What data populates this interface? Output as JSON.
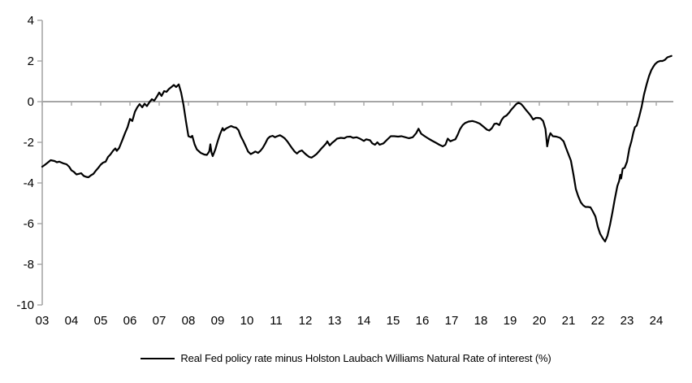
{
  "chart_data": {
    "type": "line",
    "title": "",
    "legend": "Real Fed policy rate minus Holston Laubach Williams Natural Rate of interest (%)",
    "legend_position": "bottom-center",
    "grid": "zero-line-only",
    "colors": {
      "line": "#000000",
      "axis": "#A6A6A6",
      "text": "#000000",
      "background": "#FFFFFF"
    },
    "y_axis": {
      "min": -10,
      "max": 4,
      "tick_step": 2,
      "ticks": [
        4,
        2,
        0,
        -2,
        -4,
        -6,
        -8,
        -10
      ],
      "tick_labels": [
        "4",
        "2",
        "0",
        "-2",
        "-4",
        "-6",
        "-8",
        "-10"
      ]
    },
    "x_axis": {
      "start_year": 2003,
      "end_x": 2024.55,
      "tick_labels": [
        "03",
        "04",
        "05",
        "06",
        "07",
        "08",
        "09",
        "10",
        "11",
        "12",
        "13",
        "14",
        "15",
        "16",
        "17",
        "18",
        "19",
        "20",
        "21",
        "22",
        "23",
        "24"
      ]
    },
    "series": [
      {
        "name": "Real Fed policy rate minus Holston Laubach Williams Natural Rate of interest (%)",
        "points": [
          [
            2003.0,
            -3.2
          ],
          [
            2003.08,
            -3.12
          ],
          [
            2003.17,
            -3.02
          ],
          [
            2003.29,
            -2.88
          ],
          [
            2003.42,
            -2.92
          ],
          [
            2003.5,
            -2.98
          ],
          [
            2003.58,
            -2.95
          ],
          [
            2003.71,
            -3.03
          ],
          [
            2003.83,
            -3.08
          ],
          [
            2003.92,
            -3.2
          ],
          [
            2004.0,
            -3.38
          ],
          [
            2004.08,
            -3.45
          ],
          [
            2004.17,
            -3.58
          ],
          [
            2004.25,
            -3.55
          ],
          [
            2004.33,
            -3.52
          ],
          [
            2004.42,
            -3.65
          ],
          [
            2004.5,
            -3.7
          ],
          [
            2004.58,
            -3.72
          ],
          [
            2004.67,
            -3.62
          ],
          [
            2004.75,
            -3.55
          ],
          [
            2004.83,
            -3.4
          ],
          [
            2004.92,
            -3.25
          ],
          [
            2005.0,
            -3.1
          ],
          [
            2005.08,
            -3.0
          ],
          [
            2005.17,
            -2.95
          ],
          [
            2005.25,
            -2.72
          ],
          [
            2005.33,
            -2.6
          ],
          [
            2005.42,
            -2.42
          ],
          [
            2005.5,
            -2.3
          ],
          [
            2005.55,
            -2.42
          ],
          [
            2005.63,
            -2.28
          ],
          [
            2005.75,
            -1.85
          ],
          [
            2005.83,
            -1.55
          ],
          [
            2005.92,
            -1.25
          ],
          [
            2006.0,
            -0.85
          ],
          [
            2006.08,
            -0.95
          ],
          [
            2006.17,
            -0.5
          ],
          [
            2006.25,
            -0.28
          ],
          [
            2006.33,
            -0.12
          ],
          [
            2006.42,
            -0.28
          ],
          [
            2006.5,
            -0.1
          ],
          [
            2006.58,
            -0.22
          ],
          [
            2006.67,
            -0.02
          ],
          [
            2006.75,
            0.12
          ],
          [
            2006.83,
            0.05
          ],
          [
            2006.92,
            0.25
          ],
          [
            2007.0,
            0.45
          ],
          [
            2007.08,
            0.28
          ],
          [
            2007.17,
            0.52
          ],
          [
            2007.25,
            0.48
          ],
          [
            2007.33,
            0.62
          ],
          [
            2007.42,
            0.72
          ],
          [
            2007.5,
            0.82
          ],
          [
            2007.58,
            0.72
          ],
          [
            2007.67,
            0.85
          ],
          [
            2007.75,
            0.45
          ],
          [
            2007.83,
            -0.15
          ],
          [
            2007.92,
            -1.0
          ],
          [
            2008.0,
            -1.7
          ],
          [
            2008.08,
            -1.75
          ],
          [
            2008.13,
            -1.68
          ],
          [
            2008.21,
            -2.1
          ],
          [
            2008.29,
            -2.35
          ],
          [
            2008.42,
            -2.52
          ],
          [
            2008.54,
            -2.6
          ],
          [
            2008.63,
            -2.62
          ],
          [
            2008.71,
            -2.45
          ],
          [
            2008.75,
            -2.1
          ],
          [
            2008.79,
            -2.5
          ],
          [
            2008.83,
            -2.68
          ],
          [
            2008.92,
            -2.35
          ],
          [
            2009.0,
            -1.95
          ],
          [
            2009.08,
            -1.6
          ],
          [
            2009.17,
            -1.3
          ],
          [
            2009.21,
            -1.42
          ],
          [
            2009.29,
            -1.32
          ],
          [
            2009.38,
            -1.25
          ],
          [
            2009.46,
            -1.2
          ],
          [
            2009.54,
            -1.25
          ],
          [
            2009.63,
            -1.28
          ],
          [
            2009.71,
            -1.4
          ],
          [
            2009.79,
            -1.7
          ],
          [
            2009.88,
            -1.95
          ],
          [
            2009.96,
            -2.2
          ],
          [
            2010.04,
            -2.45
          ],
          [
            2010.13,
            -2.58
          ],
          [
            2010.21,
            -2.52
          ],
          [
            2010.29,
            -2.45
          ],
          [
            2010.38,
            -2.52
          ],
          [
            2010.46,
            -2.42
          ],
          [
            2010.54,
            -2.28
          ],
          [
            2010.63,
            -2.05
          ],
          [
            2010.71,
            -1.82
          ],
          [
            2010.79,
            -1.72
          ],
          [
            2010.88,
            -1.68
          ],
          [
            2010.96,
            -1.75
          ],
          [
            2011.04,
            -1.7
          ],
          [
            2011.13,
            -1.65
          ],
          [
            2011.21,
            -1.72
          ],
          [
            2011.29,
            -1.8
          ],
          [
            2011.38,
            -1.95
          ],
          [
            2011.46,
            -2.12
          ],
          [
            2011.54,
            -2.28
          ],
          [
            2011.63,
            -2.45
          ],
          [
            2011.71,
            -2.55
          ],
          [
            2011.79,
            -2.45
          ],
          [
            2011.88,
            -2.4
          ],
          [
            2011.96,
            -2.52
          ],
          [
            2012.04,
            -2.62
          ],
          [
            2012.13,
            -2.72
          ],
          [
            2012.21,
            -2.75
          ],
          [
            2012.29,
            -2.68
          ],
          [
            2012.38,
            -2.58
          ],
          [
            2012.46,
            -2.45
          ],
          [
            2012.54,
            -2.32
          ],
          [
            2012.63,
            -2.18
          ],
          [
            2012.71,
            -2.05
          ],
          [
            2012.75,
            -1.95
          ],
          [
            2012.83,
            -2.15
          ],
          [
            2012.92,
            -2.02
          ],
          [
            2013.0,
            -1.93
          ],
          [
            2013.08,
            -1.82
          ],
          [
            2013.21,
            -1.78
          ],
          [
            2013.33,
            -1.8
          ],
          [
            2013.42,
            -1.73
          ],
          [
            2013.54,
            -1.72
          ],
          [
            2013.63,
            -1.78
          ],
          [
            2013.75,
            -1.75
          ],
          [
            2013.88,
            -1.83
          ],
          [
            2014.0,
            -1.93
          ],
          [
            2014.08,
            -1.85
          ],
          [
            2014.21,
            -1.9
          ],
          [
            2014.29,
            -2.05
          ],
          [
            2014.38,
            -2.12
          ],
          [
            2014.46,
            -2.0
          ],
          [
            2014.54,
            -2.12
          ],
          [
            2014.67,
            -2.05
          ],
          [
            2014.79,
            -1.88
          ],
          [
            2014.92,
            -1.7
          ],
          [
            2015.04,
            -1.7
          ],
          [
            2015.17,
            -1.72
          ],
          [
            2015.29,
            -1.7
          ],
          [
            2015.42,
            -1.75
          ],
          [
            2015.54,
            -1.8
          ],
          [
            2015.67,
            -1.75
          ],
          [
            2015.79,
            -1.55
          ],
          [
            2015.87,
            -1.33
          ],
          [
            2015.96,
            -1.58
          ],
          [
            2016.08,
            -1.7
          ],
          [
            2016.21,
            -1.82
          ],
          [
            2016.33,
            -1.92
          ],
          [
            2016.46,
            -2.02
          ],
          [
            2016.58,
            -2.12
          ],
          [
            2016.7,
            -2.2
          ],
          [
            2016.79,
            -2.12
          ],
          [
            2016.87,
            -1.82
          ],
          [
            2016.96,
            -1.95
          ],
          [
            2017.04,
            -1.9
          ],
          [
            2017.13,
            -1.85
          ],
          [
            2017.21,
            -1.62
          ],
          [
            2017.29,
            -1.35
          ],
          [
            2017.38,
            -1.15
          ],
          [
            2017.46,
            -1.05
          ],
          [
            2017.58,
            -0.98
          ],
          [
            2017.71,
            -0.95
          ],
          [
            2017.83,
            -1.0
          ],
          [
            2017.96,
            -1.08
          ],
          [
            2018.08,
            -1.22
          ],
          [
            2018.21,
            -1.38
          ],
          [
            2018.29,
            -1.42
          ],
          [
            2018.38,
            -1.3
          ],
          [
            2018.46,
            -1.1
          ],
          [
            2018.54,
            -1.07
          ],
          [
            2018.63,
            -1.15
          ],
          [
            2018.71,
            -0.9
          ],
          [
            2018.79,
            -0.75
          ],
          [
            2018.88,
            -0.68
          ],
          [
            2018.96,
            -0.55
          ],
          [
            2019.04,
            -0.4
          ],
          [
            2019.13,
            -0.25
          ],
          [
            2019.21,
            -0.12
          ],
          [
            2019.29,
            -0.05
          ],
          [
            2019.38,
            -0.12
          ],
          [
            2019.46,
            -0.25
          ],
          [
            2019.54,
            -0.4
          ],
          [
            2019.63,
            -0.55
          ],
          [
            2019.71,
            -0.7
          ],
          [
            2019.79,
            -0.88
          ],
          [
            2019.88,
            -0.8
          ],
          [
            2019.96,
            -0.8
          ],
          [
            2020.04,
            -0.82
          ],
          [
            2020.13,
            -0.95
          ],
          [
            2020.21,
            -1.35
          ],
          [
            2020.27,
            -2.2
          ],
          [
            2020.33,
            -1.75
          ],
          [
            2020.38,
            -1.55
          ],
          [
            2020.46,
            -1.7
          ],
          [
            2020.58,
            -1.72
          ],
          [
            2020.71,
            -1.78
          ],
          [
            2020.83,
            -1.95
          ],
          [
            2020.92,
            -2.3
          ],
          [
            2021.0,
            -2.6
          ],
          [
            2021.08,
            -2.9
          ],
          [
            2021.17,
            -3.6
          ],
          [
            2021.25,
            -4.3
          ],
          [
            2021.33,
            -4.65
          ],
          [
            2021.42,
            -4.95
          ],
          [
            2021.5,
            -5.1
          ],
          [
            2021.58,
            -5.18
          ],
          [
            2021.67,
            -5.18
          ],
          [
            2021.75,
            -5.2
          ],
          [
            2021.83,
            -5.4
          ],
          [
            2021.92,
            -5.65
          ],
          [
            2022.0,
            -6.15
          ],
          [
            2022.08,
            -6.5
          ],
          [
            2022.17,
            -6.72
          ],
          [
            2022.25,
            -6.88
          ],
          [
            2022.33,
            -6.6
          ],
          [
            2022.42,
            -6.05
          ],
          [
            2022.5,
            -5.45
          ],
          [
            2022.58,
            -4.8
          ],
          [
            2022.67,
            -4.15
          ],
          [
            2022.73,
            -3.9
          ],
          [
            2022.77,
            -3.6
          ],
          [
            2022.8,
            -3.78
          ],
          [
            2022.85,
            -3.3
          ],
          [
            2022.92,
            -3.25
          ],
          [
            2023.0,
            -2.95
          ],
          [
            2023.08,
            -2.3
          ],
          [
            2023.15,
            -1.95
          ],
          [
            2023.21,
            -1.55
          ],
          [
            2023.27,
            -1.25
          ],
          [
            2023.33,
            -1.18
          ],
          [
            2023.42,
            -0.72
          ],
          [
            2023.5,
            -0.25
          ],
          [
            2023.58,
            0.35
          ],
          [
            2023.67,
            0.85
          ],
          [
            2023.75,
            1.25
          ],
          [
            2023.83,
            1.55
          ],
          [
            2023.9,
            1.72
          ],
          [
            2023.96,
            1.85
          ],
          [
            2024.04,
            1.95
          ],
          [
            2024.13,
            2.0
          ],
          [
            2024.21,
            2.0
          ],
          [
            2024.29,
            2.05
          ],
          [
            2024.38,
            2.18
          ],
          [
            2024.46,
            2.22
          ],
          [
            2024.52,
            2.25
          ]
        ]
      }
    ]
  }
}
